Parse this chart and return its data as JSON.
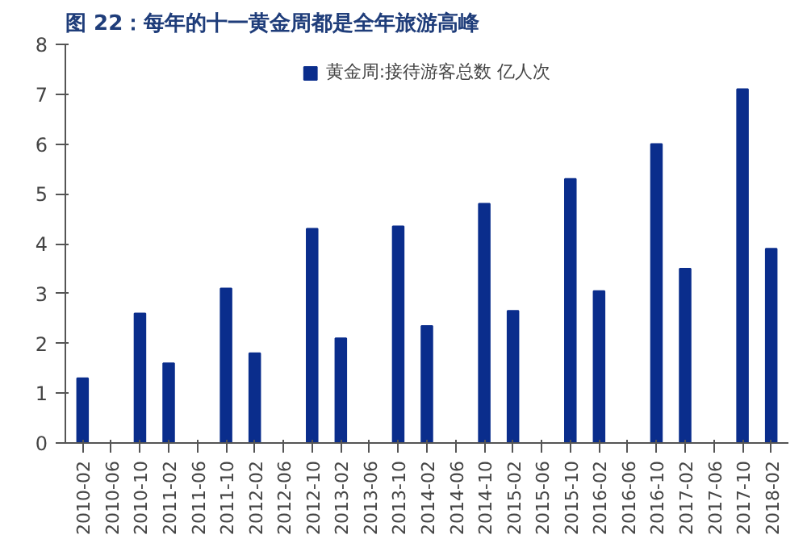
{
  "chart_data": {
    "type": "bar",
    "title": "图 22：每年的十一黄金周都是全年旅游高峰",
    "categories": [
      "2010-02",
      "2010-06",
      "2010-10",
      "2011-02",
      "2011-06",
      "2011-10",
      "2012-02",
      "2012-06",
      "2012-10",
      "2013-02",
      "2013-06",
      "2013-10",
      "2014-02",
      "2014-06",
      "2014-10",
      "2015-02",
      "2015-06",
      "2015-10",
      "2016-02",
      "2016-06",
      "2016-10",
      "2017-02",
      "2017-06",
      "2017-10",
      "2018-02"
    ],
    "series": [
      {
        "name": "黄金周:接待游客总数 亿人次",
        "color": "#0a2d8c",
        "values": [
          1.3,
          null,
          2.6,
          1.6,
          null,
          3.1,
          1.8,
          null,
          4.3,
          2.1,
          null,
          4.35,
          2.35,
          null,
          4.8,
          2.65,
          null,
          5.3,
          3.05,
          null,
          6.0,
          3.5,
          null,
          7.1,
          3.9
        ]
      }
    ],
    "ylim": [
      0,
      8
    ],
    "yticks": [
      0,
      1,
      2,
      3,
      4,
      5,
      6,
      7,
      8
    ],
    "legend": "top",
    "grid": false
  }
}
